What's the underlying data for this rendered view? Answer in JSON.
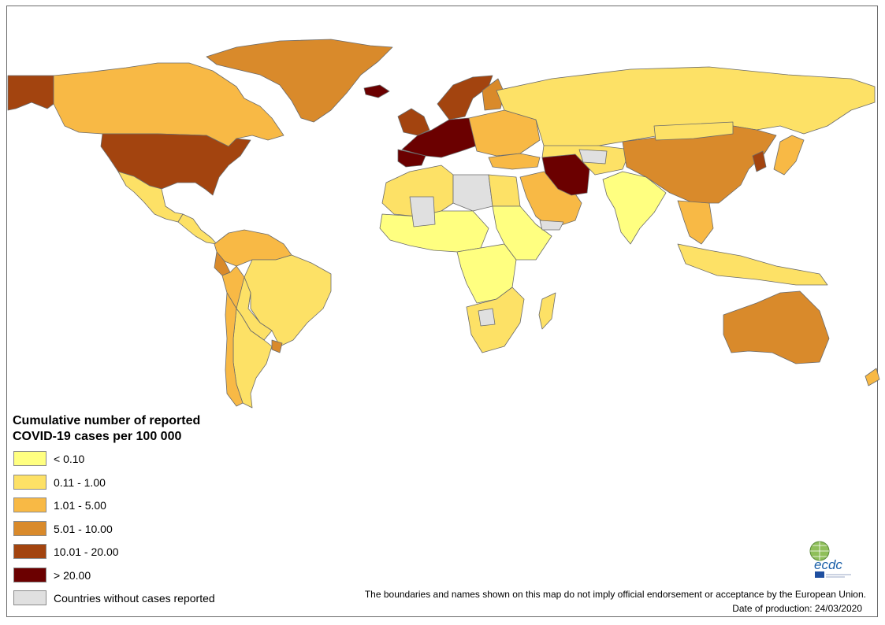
{
  "map": {
    "title_line1": "Cumulative number of reported",
    "title_line2": "COVID-19 cases per 100 000",
    "colors": {
      "ocean": "#ffffff",
      "border": "#6b6b6b",
      "no_cases": "#e0e0e0"
    },
    "legend": [
      {
        "label": "< 0.10",
        "color": "#ffff80"
      },
      {
        "label": "0.11 - 1.00",
        "color": "#fde166"
      },
      {
        "label": "1.01 - 5.00",
        "color": "#f8b945"
      },
      {
        "label": "5.01 - 10.00",
        "color": "#d98a2b"
      },
      {
        "label": "10.01 - 20.00",
        "color": "#a3440f"
      },
      {
        "label": "> 20.00",
        "color": "#6b0000"
      },
      {
        "label": "Countries without cases reported",
        "color": "#e0e0e0"
      }
    ],
    "regions": [
      {
        "name": "greenland",
        "category": 4
      },
      {
        "name": "alaska",
        "category": 5
      },
      {
        "name": "canada",
        "category": 3
      },
      {
        "name": "usa",
        "category": 5
      },
      {
        "name": "mexico",
        "category": 2
      },
      {
        "name": "central-america",
        "category": 2
      },
      {
        "name": "colombia-venezuela",
        "category": 3
      },
      {
        "name": "ecuador",
        "category": 4
      },
      {
        "name": "peru",
        "category": 3
      },
      {
        "name": "brazil",
        "category": 2
      },
      {
        "name": "bolivia-paraguay",
        "category": 2
      },
      {
        "name": "argentina",
        "category": 2
      },
      {
        "name": "chile",
        "category": 3
      },
      {
        "name": "uruguay",
        "category": 4
      },
      {
        "name": "iceland",
        "category": 6
      },
      {
        "name": "ireland-uk",
        "category": 5
      },
      {
        "name": "scandinavia",
        "category": 5
      },
      {
        "name": "finland",
        "category": 4
      },
      {
        "name": "western-europe",
        "category": 6
      },
      {
        "name": "iberia",
        "category": 6
      },
      {
        "name": "eastern-europe",
        "category": 3
      },
      {
        "name": "russia",
        "category": 2
      },
      {
        "name": "turkey",
        "category": 3
      },
      {
        "name": "north-africa",
        "category": 2
      },
      {
        "name": "libya",
        "category": 7
      },
      {
        "name": "egypt",
        "category": 2
      },
      {
        "name": "west-africa",
        "category": 1
      },
      {
        "name": "mali-region",
        "category": 7
      },
      {
        "name": "central-africa",
        "category": 1
      },
      {
        "name": "east-africa",
        "category": 1
      },
      {
        "name": "southern-africa",
        "category": 2
      },
      {
        "name": "botswana",
        "category": 7
      },
      {
        "name": "madagascar",
        "category": 2
      },
      {
        "name": "arabia",
        "category": 3
      },
      {
        "name": "yemen",
        "category": 7
      },
      {
        "name": "iran",
        "category": 6
      },
      {
        "name": "central-asia",
        "category": 2
      },
      {
        "name": "turkmenistan",
        "category": 7
      },
      {
        "name": "india",
        "category": 1
      },
      {
        "name": "china",
        "category": 4
      },
      {
        "name": "mongolia",
        "category": 2
      },
      {
        "name": "korea",
        "category": 5
      },
      {
        "name": "japan",
        "category": 3
      },
      {
        "name": "southeast-asia",
        "category": 3
      },
      {
        "name": "indonesia",
        "category": 2
      },
      {
        "name": "australia",
        "category": 4
      },
      {
        "name": "new-zealand",
        "category": 3
      }
    ]
  },
  "footer": {
    "disclaimer": "The boundaries and names shown on this map do not imply official endorsement or acceptance by the European Union.",
    "date": "Date of production: 24/03/2020",
    "logo": "ecdc"
  }
}
